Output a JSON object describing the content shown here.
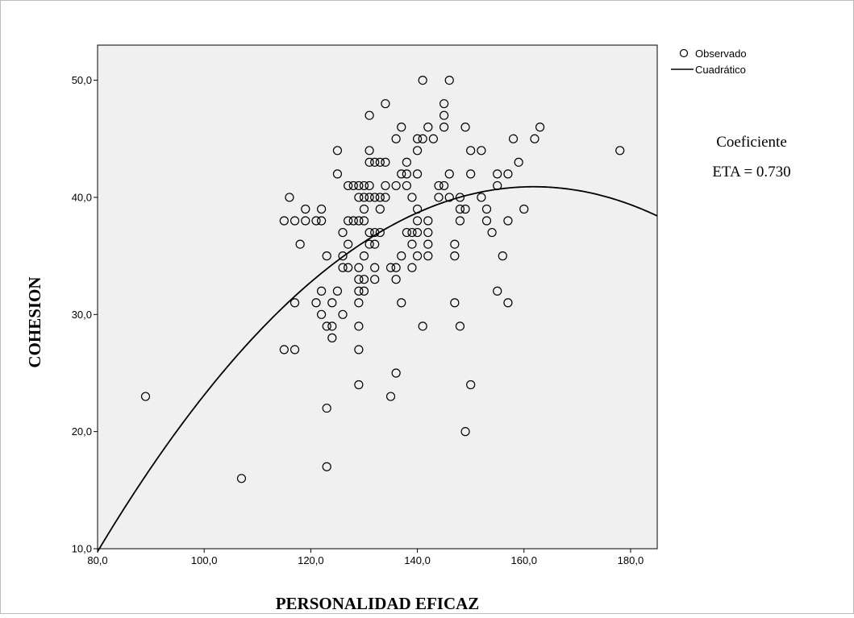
{
  "chart_data": {
    "type": "scatter",
    "xlabel": "PERSONALIDAD EFICAZ",
    "ylabel": "COHESION",
    "xlim": [
      80,
      185
    ],
    "ylim": [
      10,
      53
    ],
    "x_ticks": [
      80,
      100,
      120,
      140,
      160,
      180
    ],
    "y_ticks": [
      10,
      20,
      30,
      40,
      50
    ],
    "x_tick_labels": [
      "80,0",
      "100,0",
      "120,0",
      "140,0",
      "160,0",
      "180,0"
    ],
    "y_tick_labels": [
      "10,0",
      "20,0",
      "30,0",
      "40,0",
      "50,0"
    ],
    "grid": false,
    "legend_position": "top-right",
    "annotation": [
      "Coeficiente",
      "ETA = 0.730"
    ],
    "series": [
      {
        "name": "Observado",
        "kind": "points",
        "color": "#000000",
        "points": [
          [
            89,
            23
          ],
          [
            107,
            16
          ],
          [
            115,
            38
          ],
          [
            115,
            27
          ],
          [
            116,
            40
          ],
          [
            117,
            38
          ],
          [
            117,
            31
          ],
          [
            117,
            27
          ],
          [
            118,
            36
          ],
          [
            119,
            39
          ],
          [
            119,
            38
          ],
          [
            121,
            38
          ],
          [
            121,
            31
          ],
          [
            122,
            39
          ],
          [
            122,
            38
          ],
          [
            122,
            32
          ],
          [
            122,
            30
          ],
          [
            123,
            35
          ],
          [
            123,
            29
          ],
          [
            123,
            22
          ],
          [
            123,
            17
          ],
          [
            124,
            31
          ],
          [
            124,
            29
          ],
          [
            124,
            28
          ],
          [
            125,
            44
          ],
          [
            125,
            42
          ],
          [
            125,
            32
          ],
          [
            126,
            37
          ],
          [
            126,
            35
          ],
          [
            126,
            34
          ],
          [
            126,
            30
          ],
          [
            127,
            41
          ],
          [
            127,
            38
          ],
          [
            127,
            36
          ],
          [
            127,
            34
          ],
          [
            128,
            41
          ],
          [
            128,
            38
          ],
          [
            129,
            41
          ],
          [
            129,
            40
          ],
          [
            129,
            38
          ],
          [
            129,
            34
          ],
          [
            129,
            33
          ],
          [
            129,
            32
          ],
          [
            129,
            31
          ],
          [
            129,
            29
          ],
          [
            129,
            27
          ],
          [
            129,
            24
          ],
          [
            130,
            41
          ],
          [
            130,
            40
          ],
          [
            130,
            39
          ],
          [
            130,
            38
          ],
          [
            130,
            35
          ],
          [
            130,
            33
          ],
          [
            130,
            32
          ],
          [
            131,
            47
          ],
          [
            131,
            44
          ],
          [
            131,
            43
          ],
          [
            131,
            41
          ],
          [
            131,
            40
          ],
          [
            131,
            37
          ],
          [
            131,
            36
          ],
          [
            132,
            43
          ],
          [
            132,
            40
          ],
          [
            132,
            37
          ],
          [
            132,
            36
          ],
          [
            132,
            34
          ],
          [
            132,
            33
          ],
          [
            133,
            43
          ],
          [
            133,
            40
          ],
          [
            133,
            39
          ],
          [
            133,
            37
          ],
          [
            134,
            48
          ],
          [
            134,
            43
          ],
          [
            134,
            41
          ],
          [
            134,
            40
          ],
          [
            135,
            34
          ],
          [
            135,
            23
          ],
          [
            136,
            45
          ],
          [
            136,
            41
          ],
          [
            136,
            34
          ],
          [
            136,
            33
          ],
          [
            136,
            25
          ],
          [
            137,
            46
          ],
          [
            137,
            42
          ],
          [
            137,
            35
          ],
          [
            137,
            31
          ],
          [
            138,
            43
          ],
          [
            138,
            42
          ],
          [
            138,
            41
          ],
          [
            138,
            37
          ],
          [
            139,
            40
          ],
          [
            139,
            37
          ],
          [
            139,
            36
          ],
          [
            139,
            34
          ],
          [
            140,
            45
          ],
          [
            140,
            44
          ],
          [
            140,
            42
          ],
          [
            140,
            39
          ],
          [
            140,
            38
          ],
          [
            140,
            37
          ],
          [
            140,
            35
          ],
          [
            141,
            50
          ],
          [
            141,
            45
          ],
          [
            141,
            29
          ],
          [
            142,
            46
          ],
          [
            142,
            38
          ],
          [
            142,
            37
          ],
          [
            142,
            36
          ],
          [
            142,
            35
          ],
          [
            143,
            45
          ],
          [
            144,
            41
          ],
          [
            144,
            40
          ],
          [
            145,
            48
          ],
          [
            145,
            47
          ],
          [
            145,
            46
          ],
          [
            145,
            41
          ],
          [
            146,
            50
          ],
          [
            146,
            42
          ],
          [
            146,
            40
          ],
          [
            147,
            36
          ],
          [
            147,
            35
          ],
          [
            147,
            31
          ],
          [
            148,
            40
          ],
          [
            148,
            39
          ],
          [
            148,
            38
          ],
          [
            148,
            29
          ],
          [
            149,
            46
          ],
          [
            149,
            39
          ],
          [
            149,
            20
          ],
          [
            150,
            44
          ],
          [
            150,
            42
          ],
          [
            150,
            24
          ],
          [
            152,
            44
          ],
          [
            152,
            40
          ],
          [
            153,
            39
          ],
          [
            153,
            38
          ],
          [
            154,
            37
          ],
          [
            155,
            42
          ],
          [
            155,
            41
          ],
          [
            155,
            32
          ],
          [
            156,
            35
          ],
          [
            157,
            42
          ],
          [
            157,
            38
          ],
          [
            157,
            31
          ],
          [
            158,
            45
          ],
          [
            159,
            43
          ],
          [
            160,
            39
          ],
          [
            162,
            45
          ],
          [
            163,
            46
          ],
          [
            178,
            44
          ]
        ]
      },
      {
        "name": "Cuadrático",
        "kind": "line",
        "color": "#000000",
        "coefficients": {
          "a": -0.00465,
          "b": 1.5052,
          "c": -80.9
        },
        "x_range": [
          80,
          185
        ]
      }
    ]
  }
}
